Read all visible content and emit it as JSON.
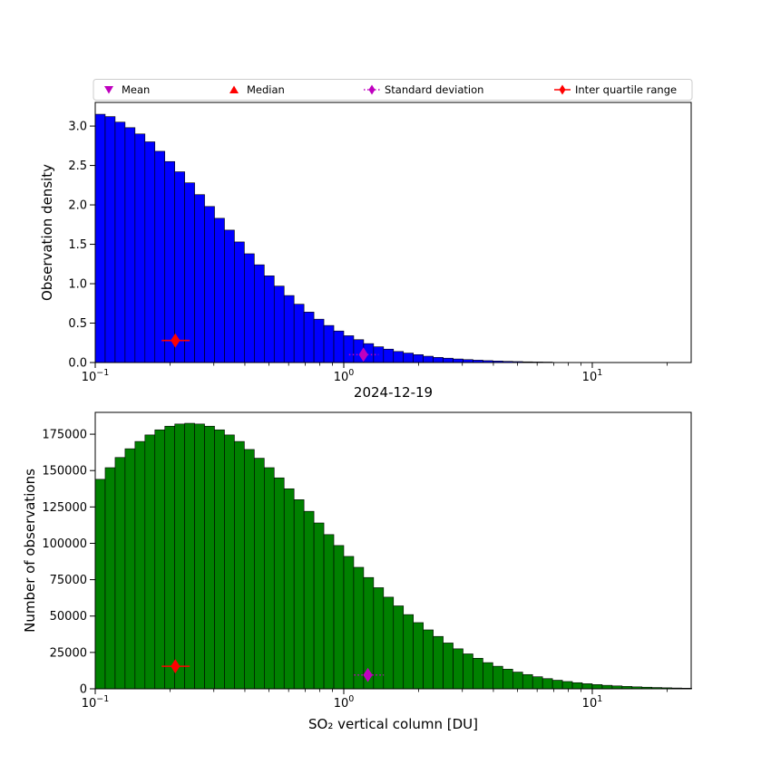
{
  "figure": {
    "title": "2024-12-19",
    "background": "#ffffff"
  },
  "legend": {
    "entries": [
      {
        "label": "Mean",
        "marker": "triangle-down",
        "color": "#bf00bf"
      },
      {
        "label": "Median",
        "marker": "triangle-up",
        "color": "#ff0000"
      },
      {
        "label": "Standard deviation",
        "marker": "diamond-dotted-line",
        "color": "#bf00bf"
      },
      {
        "label": "Inter quartile range",
        "marker": "diamond-solid-line",
        "color": "#ff0000"
      }
    ]
  },
  "chart_data": [
    {
      "type": "bar",
      "name": "observation-density-histogram",
      "ylabel": "Observation density",
      "xlabel": "",
      "x_scale": "log",
      "xlim": [
        0.1,
        25
      ],
      "ylim": [
        0,
        3.3
      ],
      "yticks": [
        0.0,
        0.5,
        1.0,
        1.5,
        2.0,
        2.5,
        3.0
      ],
      "ytick_labels": [
        "0.0",
        "0.5",
        "1.0",
        "1.5",
        "2.0",
        "2.5",
        "3.0"
      ],
      "xticks": [
        {
          "value": 0.1,
          "exp": "−1"
        },
        {
          "value": 1,
          "exp": "0"
        },
        {
          "value": 10,
          "exp": "1"
        }
      ],
      "bar_color": "#0000ff",
      "bin_log10_start": -1.0,
      "bin_log10_width": 0.04,
      "values": [
        3.15,
        3.12,
        3.05,
        2.98,
        2.9,
        2.8,
        2.68,
        2.55,
        2.42,
        2.28,
        2.13,
        1.98,
        1.83,
        1.68,
        1.53,
        1.38,
        1.24,
        1.1,
        0.97,
        0.85,
        0.74,
        0.64,
        0.55,
        0.47,
        0.4,
        0.34,
        0.29,
        0.24,
        0.2,
        0.17,
        0.14,
        0.12,
        0.1,
        0.08,
        0.065,
        0.055,
        0.045,
        0.037,
        0.03,
        0.024,
        0.019,
        0.015,
        0.012,
        0.009,
        0.007,
        0.006,
        0.005,
        0.004,
        0.003,
        0.0025,
        0.002,
        0.0016,
        0.0013,
        0.001,
        0.0008,
        0.0006,
        0.0005,
        0.0004,
        0.0003,
        0.0002
      ],
      "markers": [
        {
          "name": "inter-quartile-range",
          "shape": "diamond",
          "color": "#ff0000",
          "x": 0.21,
          "y": 0.28,
          "x_from": 0.185,
          "x_to": 0.24,
          "line": "solid"
        },
        {
          "name": "standard-deviation",
          "shape": "diamond",
          "color": "#bf00bf",
          "x": 1.2,
          "y": 0.1,
          "x_from": 1.05,
          "x_to": 1.38,
          "line": "dotted"
        }
      ]
    },
    {
      "type": "bar",
      "name": "number-of-observations-histogram",
      "ylabel": "Number of observations",
      "xlabel": "SO₂ vertical column [DU]",
      "x_scale": "log",
      "xlim": [
        0.1,
        25
      ],
      "ylim": [
        0,
        190000
      ],
      "yticks": [
        0,
        25000,
        50000,
        75000,
        100000,
        125000,
        150000,
        175000
      ],
      "ytick_labels": [
        "0",
        "25000",
        "50000",
        "75000",
        "100000",
        "125000",
        "150000",
        "175000"
      ],
      "xticks": [
        {
          "value": 0.1,
          "exp": "−1"
        },
        {
          "value": 1,
          "exp": "0"
        },
        {
          "value": 10,
          "exp": "1"
        }
      ],
      "bar_color": "#008000",
      "bin_log10_start": -1.0,
      "bin_log10_width": 0.04,
      "values": [
        144000,
        152000,
        159000,
        165000,
        170000,
        174500,
        178000,
        180500,
        182000,
        182500,
        182000,
        180500,
        178000,
        174500,
        170000,
        164500,
        158500,
        152000,
        145000,
        137500,
        130000,
        122000,
        114000,
        106000,
        98500,
        91000,
        83500,
        76500,
        69500,
        63000,
        57000,
        51000,
        45500,
        40500,
        36000,
        31500,
        27500,
        24000,
        21000,
        18000,
        15500,
        13500,
        11500,
        9800,
        8300,
        7000,
        5900,
        5000,
        4200,
        3500,
        2900,
        2400,
        2000,
        1650,
        1350,
        1100,
        900,
        700,
        550,
        420
      ],
      "markers": [
        {
          "name": "inter-quartile-range",
          "shape": "diamond",
          "color": "#ff0000",
          "x": 0.21,
          "y": 15500,
          "x_from": 0.185,
          "x_to": 0.24,
          "line": "solid"
        },
        {
          "name": "standard-deviation",
          "shape": "diamond",
          "color": "#bf00bf",
          "x": 1.25,
          "y": 9500,
          "x_from": 1.1,
          "x_to": 1.45,
          "line": "dotted"
        }
      ]
    }
  ]
}
